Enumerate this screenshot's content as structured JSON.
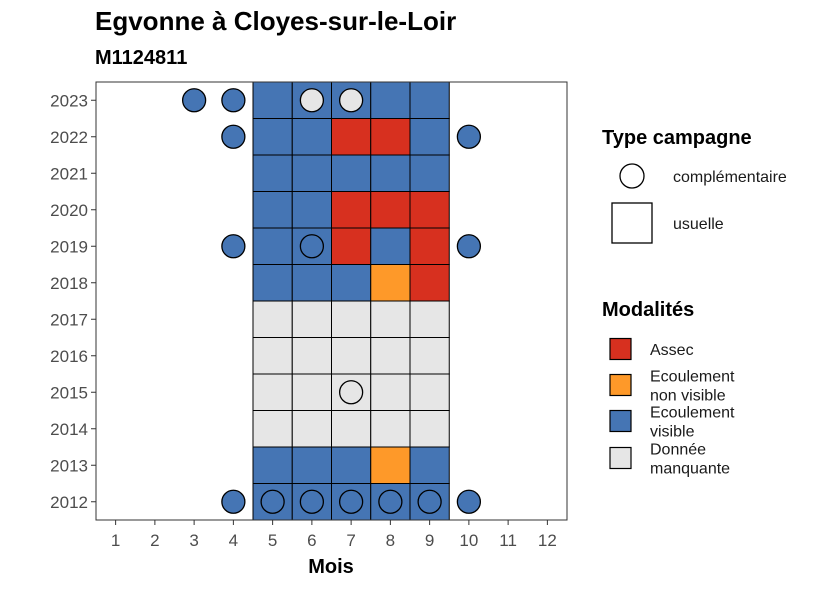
{
  "chart_data": {
    "type": "heatmap",
    "title": "Egvonne à Cloyes-sur-le-Loir",
    "subtitle": "M1124811",
    "xlabel": "Mois",
    "ylabel": "",
    "x_ticks": [
      "1",
      "2",
      "3",
      "4",
      "5",
      "6",
      "7",
      "8",
      "9",
      "10",
      "11",
      "12"
    ],
    "y_ticks": [
      "2012",
      "2013",
      "2014",
      "2015",
      "2016",
      "2017",
      "2018",
      "2019",
      "2020",
      "2021",
      "2022",
      "2023"
    ],
    "xlim": [
      0.5,
      12.5
    ],
    "ylim": [
      2011.5,
      2023.5
    ],
    "grid": false,
    "legend_position": "right",
    "colors": {
      "assec": "#d7301f",
      "ecoulement_non_visible": "#fe9929",
      "ecoulement_visible": "#4575b4",
      "donnee_manquante": "#e6e6e6"
    },
    "usuelle": [
      {
        "year": 2023,
        "values": {
          "5": "ecoulement_visible",
          "6": "ecoulement_visible",
          "7": "ecoulement_visible",
          "8": "ecoulement_visible",
          "9": "ecoulement_visible"
        }
      },
      {
        "year": 2022,
        "values": {
          "5": "ecoulement_visible",
          "6": "ecoulement_visible",
          "7": "assec",
          "8": "assec",
          "9": "ecoulement_visible"
        }
      },
      {
        "year": 2021,
        "values": {
          "5": "ecoulement_visible",
          "6": "ecoulement_visible",
          "7": "ecoulement_visible",
          "8": "ecoulement_visible",
          "9": "ecoulement_visible"
        }
      },
      {
        "year": 2020,
        "values": {
          "5": "ecoulement_visible",
          "6": "ecoulement_visible",
          "7": "assec",
          "8": "assec",
          "9": "assec"
        }
      },
      {
        "year": 2019,
        "values": {
          "5": "ecoulement_visible",
          "6": "ecoulement_visible",
          "7": "assec",
          "8": "ecoulement_visible",
          "9": "assec"
        }
      },
      {
        "year": 2018,
        "values": {
          "5": "ecoulement_visible",
          "6": "ecoulement_visible",
          "7": "ecoulement_visible",
          "8": "ecoulement_non_visible",
          "9": "assec"
        }
      },
      {
        "year": 2017,
        "values": {
          "5": "donnee_manquante",
          "6": "donnee_manquante",
          "7": "donnee_manquante",
          "8": "donnee_manquante",
          "9": "donnee_manquante"
        }
      },
      {
        "year": 2016,
        "values": {
          "5": "donnee_manquante",
          "6": "donnee_manquante",
          "7": "donnee_manquante",
          "8": "donnee_manquante",
          "9": "donnee_manquante"
        }
      },
      {
        "year": 2015,
        "values": {
          "5": "donnee_manquante",
          "6": "donnee_manquante",
          "7": "donnee_manquante",
          "8": "donnee_manquante",
          "9": "donnee_manquante"
        }
      },
      {
        "year": 2014,
        "values": {
          "5": "donnee_manquante",
          "6": "donnee_manquante",
          "7": "donnee_manquante",
          "8": "donnee_manquante",
          "9": "donnee_manquante"
        }
      },
      {
        "year": 2013,
        "values": {
          "5": "ecoulement_visible",
          "6": "ecoulement_visible",
          "7": "ecoulement_visible",
          "8": "ecoulement_non_visible",
          "9": "ecoulement_visible"
        }
      },
      {
        "year": 2012,
        "values": {
          "5": "ecoulement_visible",
          "6": "ecoulement_visible",
          "7": "ecoulement_visible",
          "8": "ecoulement_visible",
          "9": "ecoulement_visible"
        }
      }
    ],
    "complementaire": [
      {
        "year": 2023,
        "month": 3,
        "value": "ecoulement_visible"
      },
      {
        "year": 2023,
        "month": 4,
        "value": "ecoulement_visible"
      },
      {
        "year": 2023,
        "month": 6,
        "value": "donnee_manquante"
      },
      {
        "year": 2023,
        "month": 7,
        "value": "donnee_manquante"
      },
      {
        "year": 2022,
        "month": 4,
        "value": "ecoulement_visible"
      },
      {
        "year": 2022,
        "month": 10,
        "value": "ecoulement_visible"
      },
      {
        "year": 2019,
        "month": 4,
        "value": "ecoulement_visible"
      },
      {
        "year": 2019,
        "month": 6,
        "value": "ecoulement_visible"
      },
      {
        "year": 2019,
        "month": 10,
        "value": "ecoulement_visible"
      },
      {
        "year": 2015,
        "month": 7,
        "value": "donnee_manquante"
      },
      {
        "year": 2012,
        "month": 4,
        "value": "ecoulement_visible"
      },
      {
        "year": 2012,
        "month": 5,
        "value": "ecoulement_visible"
      },
      {
        "year": 2012,
        "month": 6,
        "value": "ecoulement_visible"
      },
      {
        "year": 2012,
        "month": 7,
        "value": "ecoulement_visible"
      },
      {
        "year": 2012,
        "month": 8,
        "value": "ecoulement_visible"
      },
      {
        "year": 2012,
        "month": 9,
        "value": "ecoulement_visible"
      },
      {
        "year": 2012,
        "month": 10,
        "value": "ecoulement_visible"
      }
    ],
    "legend_type": {
      "title": "Type campagne",
      "items": [
        {
          "key": "complementaire",
          "label": "complémentaire"
        },
        {
          "key": "usuelle",
          "label": "usuelle"
        }
      ]
    },
    "legend_modalites": {
      "title": "Modalités",
      "items": [
        {
          "key": "assec",
          "lines": [
            "Assec"
          ]
        },
        {
          "key": "ecoulement_non_visible",
          "lines": [
            "Ecoulement",
            "non visible"
          ]
        },
        {
          "key": "ecoulement_visible",
          "lines": [
            "Ecoulement",
            "visible"
          ]
        },
        {
          "key": "donnee_manquante",
          "lines": [
            "Donnée",
            "manquante"
          ]
        }
      ]
    }
  }
}
